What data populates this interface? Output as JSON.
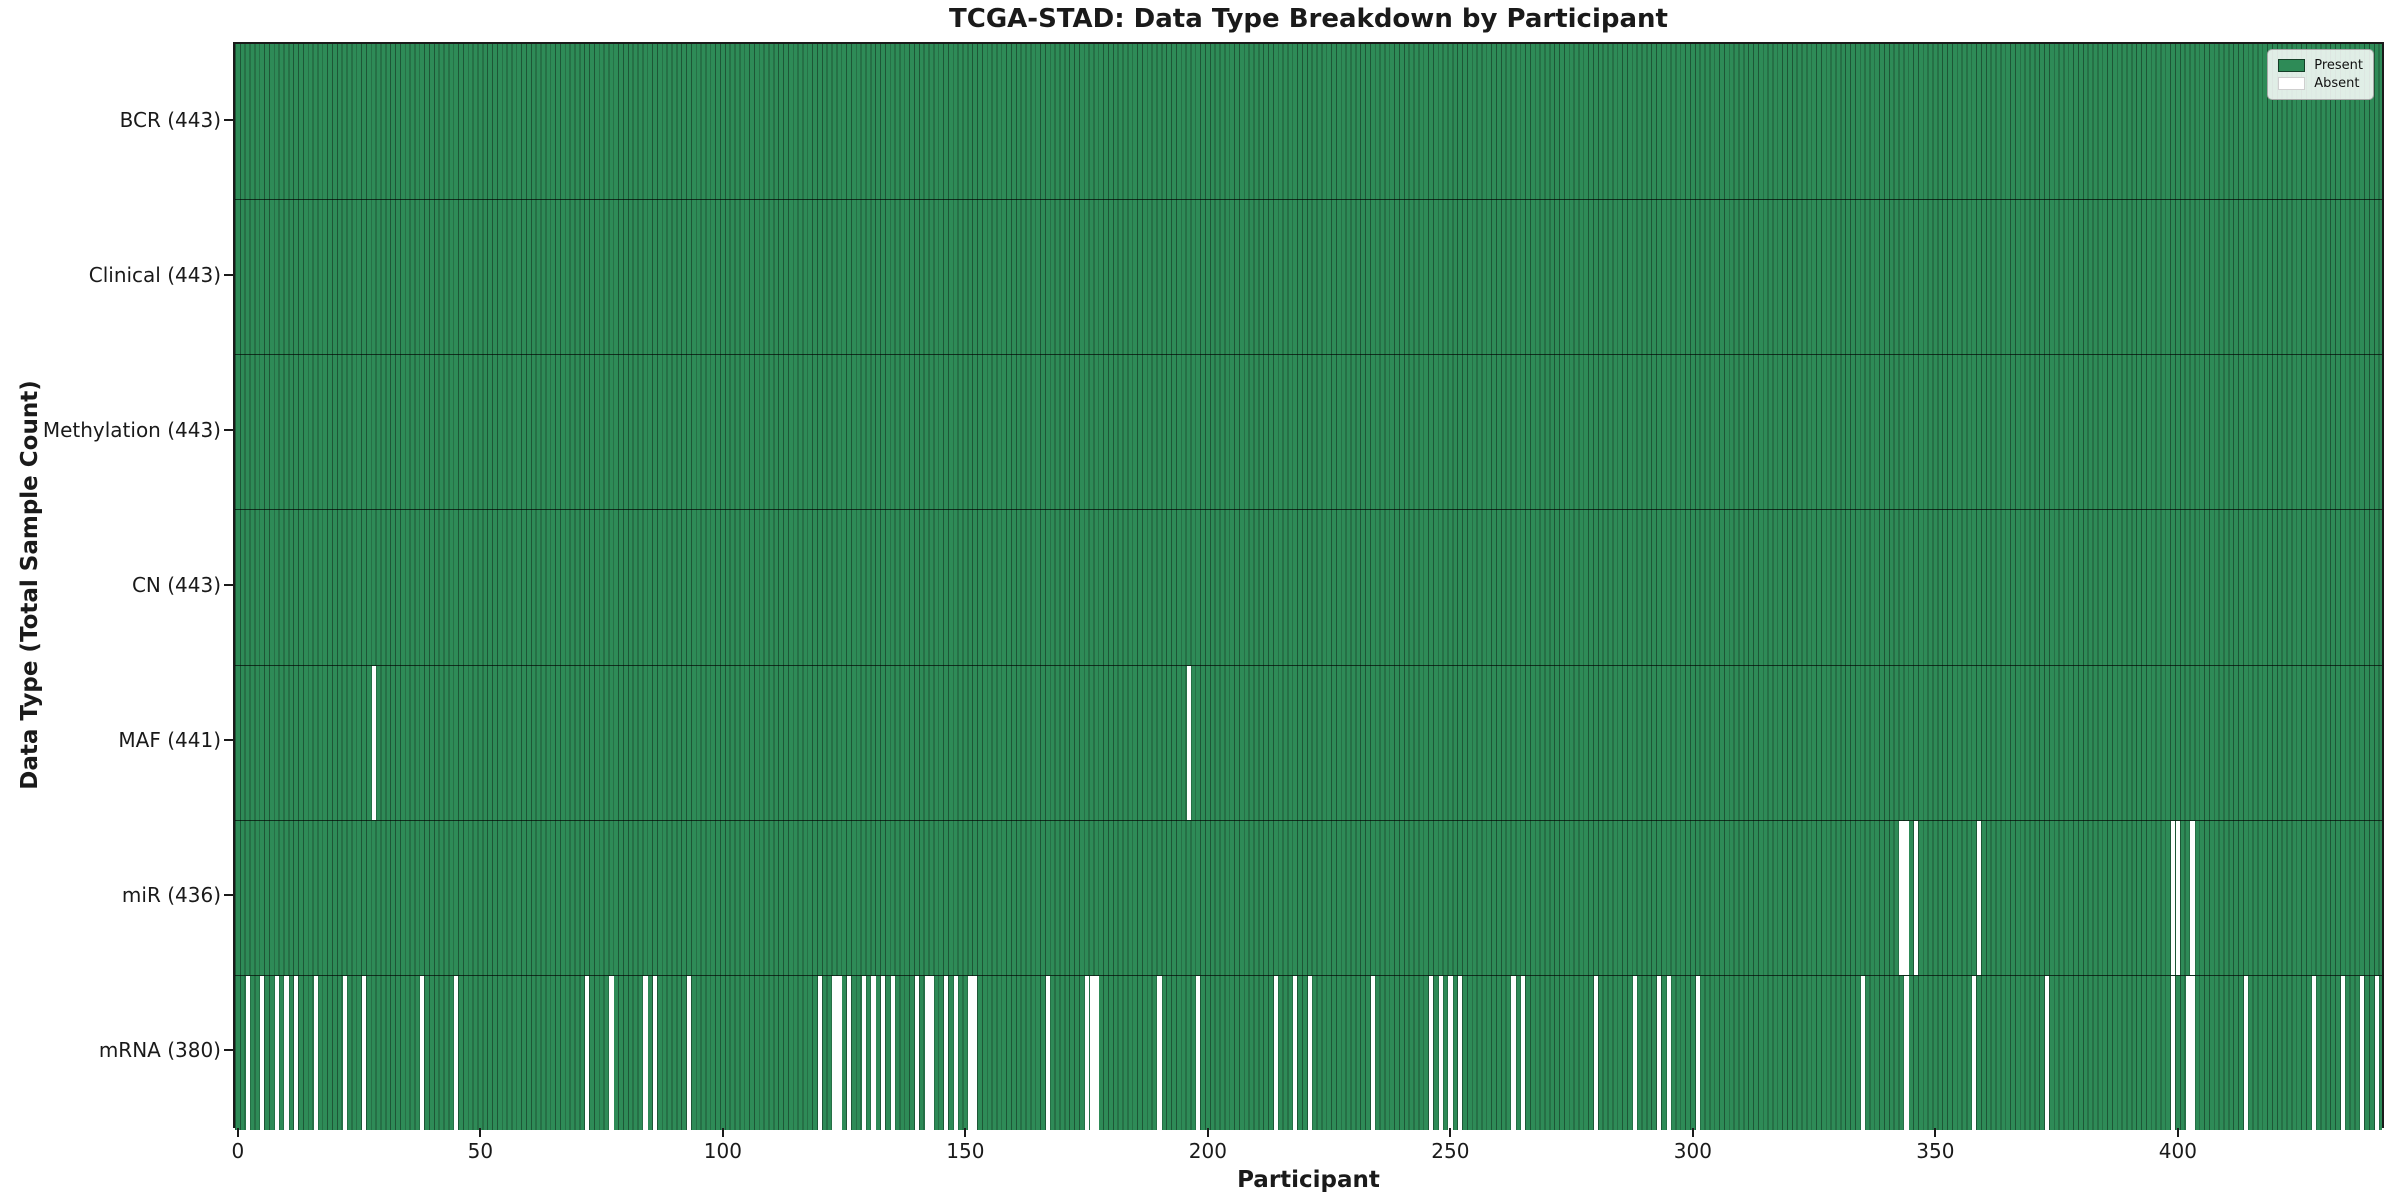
{
  "title": "TCGA-STAD: Data Type Breakdown by Participant",
  "colors": {
    "present": "#2e8b57",
    "absent": "#ffffff",
    "bar_edge": "rgba(0,0,0,0.38)",
    "frame": "#1a1a1a"
  },
  "chart_data": {
    "type": "heatmap",
    "title": "TCGA-STAD: Data Type Breakdown by Participant",
    "xlabel": "Participant",
    "ylabel": "Data Type (Total Sample Count)",
    "x_ticks": [
      0,
      50,
      100,
      150,
      200,
      250,
      300,
      350,
      400
    ],
    "x_range": [
      -0.5,
      443
    ],
    "n_participants": 443,
    "grid": false,
    "legend_position": "upper right",
    "legend": [
      {
        "label": "Present",
        "color": "#2e8b57"
      },
      {
        "label": "Absent",
        "color": "#ffffff"
      }
    ],
    "rows": [
      {
        "label": "BCR (443)",
        "total": 443,
        "absent_participants": []
      },
      {
        "label": "Clinical (443)",
        "total": 443,
        "absent_participants": []
      },
      {
        "label": "Methylation (443)",
        "total": 443,
        "absent_participants": []
      },
      {
        "label": "CN (443)",
        "total": 443,
        "absent_participants": []
      },
      {
        "label": "MAF (441)",
        "total": 441,
        "absent_participants": [
          28,
          196
        ]
      },
      {
        "label": "miR (436)",
        "total": 436,
        "absent_participants": [
          343,
          344,
          346,
          359,
          399,
          400,
          403
        ]
      },
      {
        "label": "mRNA (380)",
        "total": 380,
        "absent_participants": [
          2,
          5,
          8,
          10,
          12,
          16,
          22,
          26,
          38,
          45,
          72,
          77,
          84,
          86,
          93,
          120,
          123,
          124,
          126,
          129,
          131,
          133,
          135,
          140,
          142,
          143,
          146,
          148,
          151,
          152,
          167,
          175,
          176,
          177,
          190,
          198,
          214,
          218,
          221,
          234,
          246,
          248,
          250,
          252,
          263,
          265,
          280,
          288,
          293,
          295,
          301,
          335,
          344,
          358,
          373,
          399,
          402,
          403,
          414,
          428,
          434,
          438,
          441
        ]
      }
    ]
  }
}
